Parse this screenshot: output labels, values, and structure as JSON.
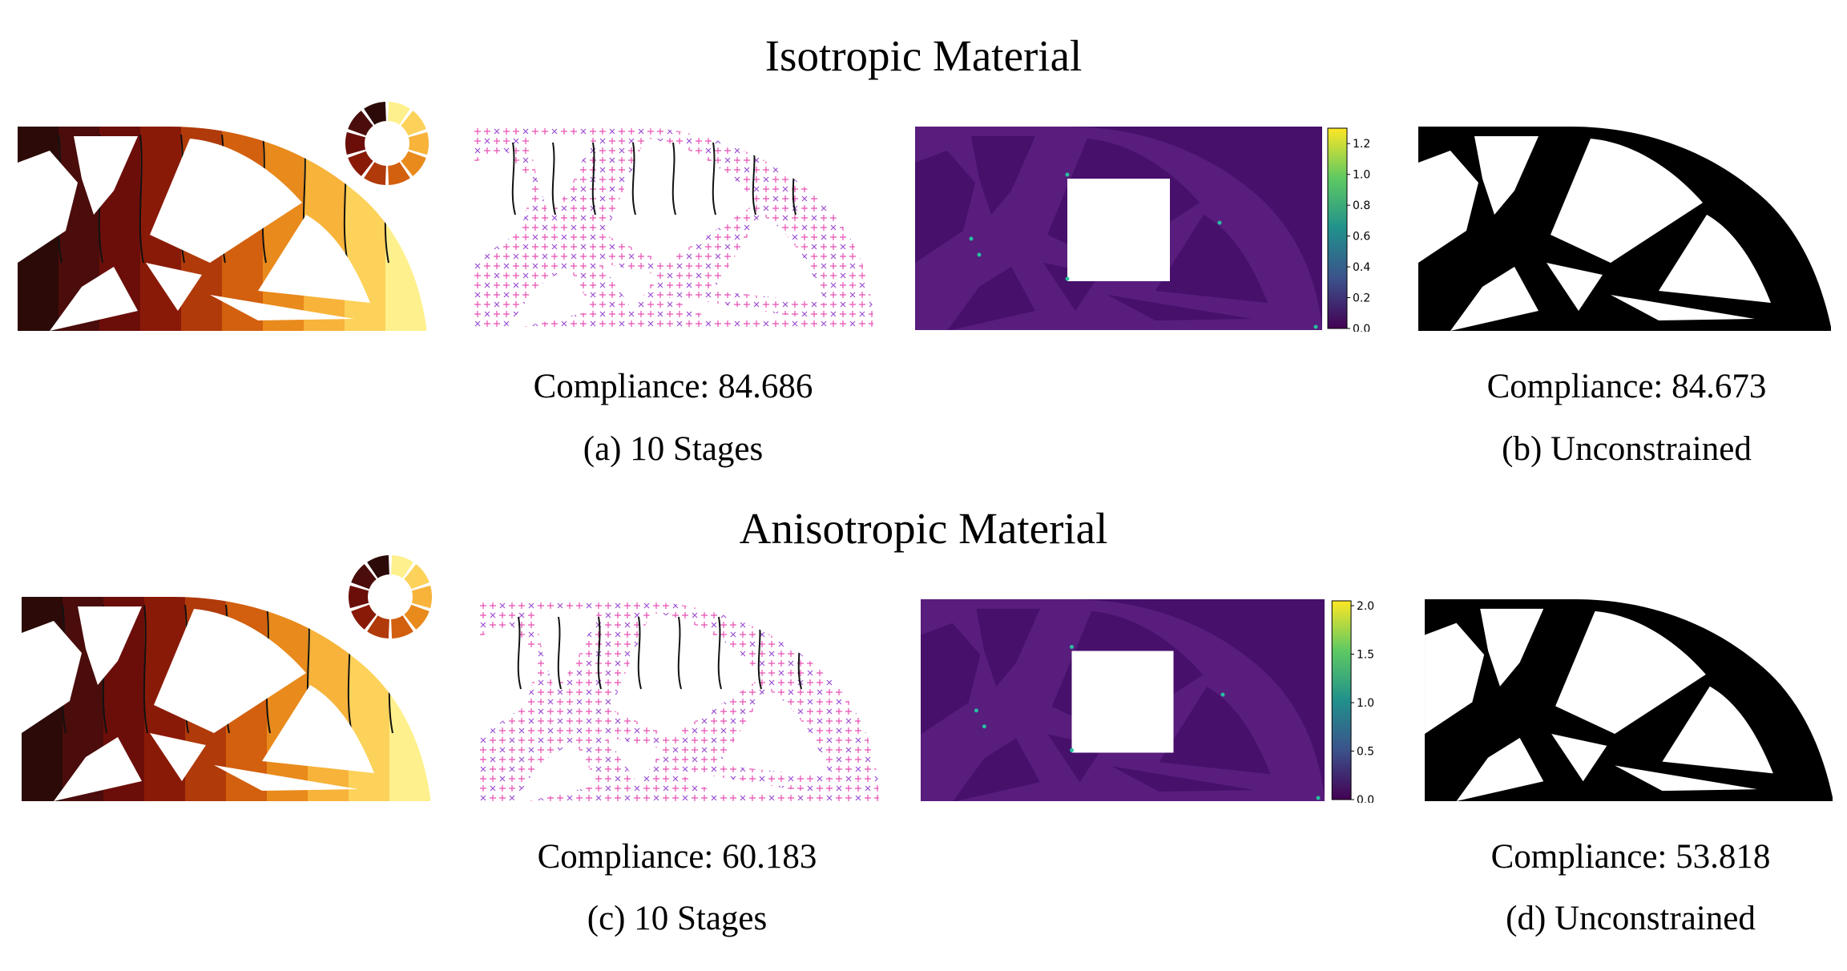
{
  "rows": [
    {
      "heading": "Isotropic Material",
      "colorbar_ticks": [
        "1.2",
        "1.0",
        "0.8",
        "0.6",
        "0.4",
        "0.2",
        "0.0"
      ],
      "staged": {
        "compliance": "Compliance: 84.686",
        "caption": "(a) 10 Stages"
      },
      "unconstrained": {
        "compliance": "Compliance: 84.673",
        "caption": "(b) Unconstrained"
      }
    },
    {
      "heading": "Anisotropic Material",
      "colorbar_ticks": [
        "2.0",
        "1.5",
        "1.0",
        "0.5",
        "0.0"
      ],
      "staged": {
        "compliance": "Compliance: 60.183",
        "caption": "(c) 10 Stages"
      },
      "unconstrained": {
        "compliance": "Compliance: 53.818",
        "caption": "(d) Unconstrained"
      }
    }
  ],
  "colors": {
    "stage_palette": [
      "#2b0a08",
      "#4a0d0b",
      "#6b0e0a",
      "#8a1a08",
      "#b03a0a",
      "#d2600e",
      "#e98a1c",
      "#f7b33a",
      "#fdd25a",
      "#fef08c"
    ],
    "heatmap_bg": "#46106b",
    "heatmap_struct": "#5a1f80",
    "colorbar_top": "#fde725",
    "colorbar_bottom": "#440154",
    "marker_plus": "#e64fb2",
    "marker_x": "#9b4fd1"
  }
}
